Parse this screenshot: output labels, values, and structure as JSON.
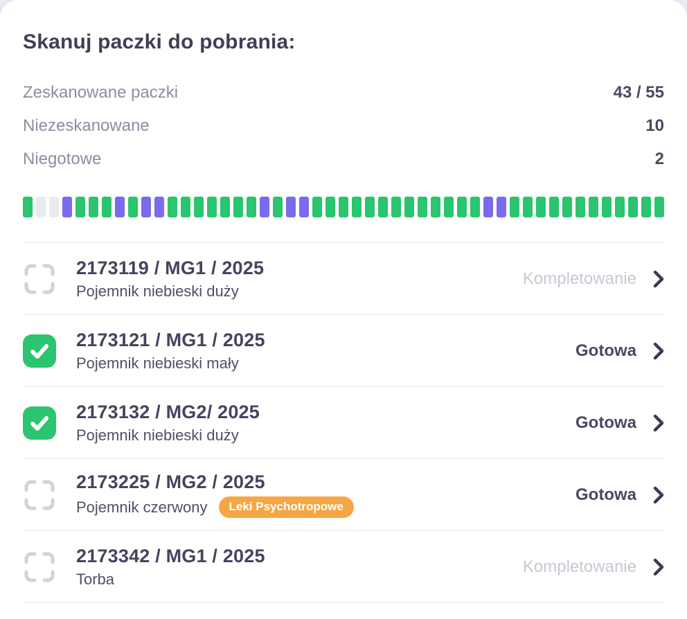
{
  "title": "Skanuj paczki do pobrania:",
  "stats": [
    {
      "label": "Zeskanowane paczki",
      "value": "43 / 55"
    },
    {
      "label": "Niezeskanowane",
      "value": "10"
    },
    {
      "label": "Niegotowe",
      "value": "2"
    }
  ],
  "progress": {
    "legend": {
      "scanned": "zeskanowane",
      "unscanned": "niezeskanowane",
      "notready": "niegotowe"
    },
    "colors": {
      "scanned": "#2bc46f",
      "unscanned": "#7a6bee",
      "notready": "#e9ebf2"
    },
    "segments": [
      "scanned",
      "notready",
      "notready",
      "unscanned",
      "scanned",
      "scanned",
      "scanned",
      "unscanned",
      "scanned",
      "unscanned",
      "unscanned",
      "scanned",
      "scanned",
      "scanned",
      "scanned",
      "scanned",
      "scanned",
      "scanned",
      "unscanned",
      "scanned",
      "unscanned",
      "unscanned",
      "scanned",
      "scanned",
      "scanned",
      "scanned",
      "scanned",
      "scanned",
      "scanned",
      "scanned",
      "scanned",
      "scanned",
      "scanned",
      "scanned",
      "scanned",
      "unscanned",
      "unscanned",
      "scanned",
      "scanned",
      "scanned",
      "scanned",
      "scanned",
      "scanned",
      "scanned",
      "scanned",
      "scanned",
      "scanned",
      "scanned",
      "scanned"
    ]
  },
  "packages": [
    {
      "id": "2173119 / MG1 / 2025",
      "description": "Pojemnik niebieski duży",
      "badge": null,
      "status": "Kompletowanie",
      "status_state": "pending",
      "icon": "scan-frame-icon"
    },
    {
      "id": "2173121 / MG1 / 2025",
      "description": "Pojemnik niebieski mały",
      "badge": null,
      "status": "Gotowa",
      "status_state": "done",
      "icon": "check-icon"
    },
    {
      "id": "2173132 / MG2/ 2025",
      "description": "Pojemnik niebieski duży",
      "badge": null,
      "status": "Gotowa",
      "status_state": "done",
      "icon": "check-icon"
    },
    {
      "id": "2173225 / MG2 / 2025",
      "description": "Pojemnik czerwony",
      "badge": "Leki Psychotropowe",
      "status": "Gotowa",
      "status_state": "done",
      "icon": "scan-frame-icon"
    },
    {
      "id": "2173342 / MG1 / 2025",
      "description": "Torba",
      "badge": null,
      "status": "Kompletowanie",
      "status_state": "pending",
      "icon": "scan-frame-icon"
    }
  ],
  "badge_color": "#f6a644",
  "chevron_color": "#3c3b52",
  "scan_frame_color": "#d1d2db",
  "check_color": "#2bc46f"
}
